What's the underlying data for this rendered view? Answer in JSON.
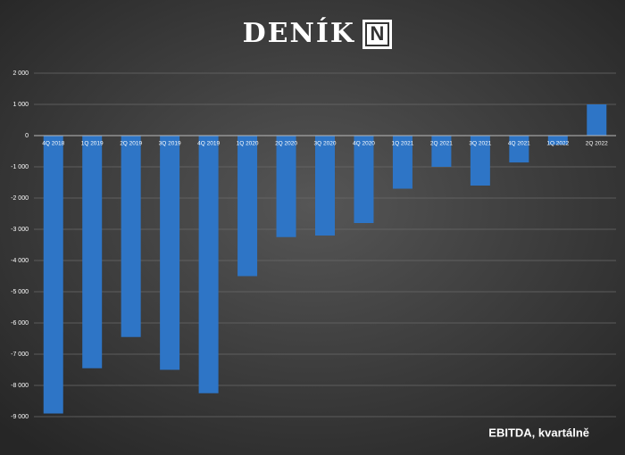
{
  "logo": {
    "text": "DENÍK",
    "mark": "N"
  },
  "chart_data": {
    "type": "bar",
    "caption": "EBITDA, kvartálně",
    "categories": [
      "4Q 2018",
      "1Q 2019",
      "2Q 2019",
      "3Q 2019",
      "4Q 2019",
      "1Q 2020",
      "2Q 2020",
      "3Q 2020",
      "4Q 2020",
      "1Q 2021",
      "2Q 2021",
      "3Q 2021",
      "4Q 2021",
      "1Q 2022",
      "2Q 2022"
    ],
    "values": [
      -8900,
      -7450,
      -6450,
      -7500,
      -8250,
      -4500,
      -3250,
      -3200,
      -2800,
      -1700,
      -1000,
      -1600,
      -860,
      -300,
      1000
    ],
    "color": "#2e75c6",
    "ylim": [
      -9000,
      2000
    ],
    "yticks": [
      {
        "value": 2000,
        "label": "2 000"
      },
      {
        "value": 1000,
        "label": "1 000"
      },
      0,
      {
        "value": -1000,
        "label": "-1 000"
      },
      {
        "value": -2000,
        "label": "-2 000"
      },
      {
        "value": -3000,
        "label": "-3 000"
      },
      {
        "value": -4000,
        "label": "-4 000"
      },
      {
        "value": -5000,
        "label": "-5 000"
      },
      {
        "value": -6000,
        "label": "-6 000"
      },
      {
        "value": -7000,
        "label": "-7 000"
      },
      {
        "value": -8000,
        "label": "-8 000"
      },
      {
        "value": -9000,
        "label": "-9 000"
      }
    ],
    "grid": true
  }
}
